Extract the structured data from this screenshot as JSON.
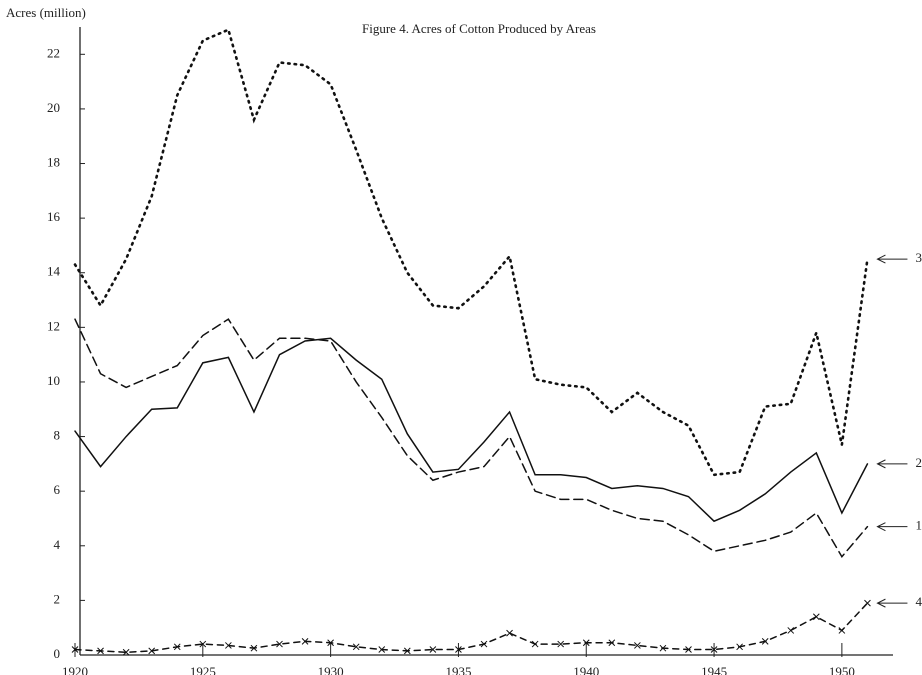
{
  "chart_data": {
    "type": "line",
    "title": "Figure 4.  Acres of Cotton Produced by Areas",
    "y_label": "Acres (million)",
    "x": [
      1920,
      1921,
      1922,
      1923,
      1924,
      1925,
      1926,
      1927,
      1928,
      1929,
      1930,
      1931,
      1932,
      1933,
      1934,
      1935,
      1936,
      1937,
      1938,
      1939,
      1940,
      1941,
      1942,
      1943,
      1944,
      1945,
      1946,
      1947,
      1948,
      1949,
      1950,
      1951
    ],
    "series": [
      {
        "name": "3",
        "color": "#111",
        "line_style": "dotted",
        "values": [
          14.3,
          12.8,
          14.5,
          16.8,
          20.5,
          22.5,
          22.9,
          19.6,
          21.7,
          21.6,
          20.9,
          18.5,
          16.0,
          14.0,
          12.8,
          12.7,
          13.5,
          14.6,
          10.1,
          9.9,
          9.8,
          8.9,
          9.6,
          8.9,
          8.4,
          6.6,
          6.7,
          9.1,
          9.2,
          11.8,
          7.7,
          14.5
        ]
      },
      {
        "name": "2",
        "color": "#111",
        "line_style": "solid",
        "values": [
          8.2,
          6.9,
          8.0,
          9.0,
          9.05,
          10.7,
          10.9,
          8.9,
          11.0,
          11.5,
          11.6,
          10.8,
          10.1,
          8.1,
          6.7,
          6.8,
          7.8,
          8.9,
          6.6,
          6.6,
          6.5,
          6.1,
          6.2,
          6.1,
          5.8,
          4.9,
          5.3,
          5.9,
          6.7,
          7.4,
          5.2,
          7.0
        ]
      },
      {
        "name": "1",
        "color": "#111",
        "line_style": "dashed",
        "values": [
          12.3,
          10.3,
          9.8,
          10.2,
          10.6,
          11.7,
          12.3,
          10.8,
          11.6,
          11.6,
          11.5,
          10.0,
          8.7,
          7.3,
          6.4,
          6.7,
          6.9,
          8.0,
          6.0,
          5.7,
          5.7,
          5.3,
          5.0,
          4.9,
          4.4,
          3.8,
          4.0,
          4.2,
          4.5,
          5.2,
          3.6,
          4.7
        ]
      },
      {
        "name": "4",
        "color": "#111",
        "line_style": "cross",
        "values": [
          0.2,
          0.15,
          0.1,
          0.15,
          0.3,
          0.4,
          0.35,
          0.25,
          0.4,
          0.5,
          0.45,
          0.3,
          0.2,
          0.15,
          0.2,
          0.2,
          0.4,
          0.8,
          0.4,
          0.4,
          0.45,
          0.45,
          0.35,
          0.25,
          0.2,
          0.2,
          0.3,
          0.5,
          0.9,
          1.4,
          0.9,
          1.9
        ]
      }
    ],
    "xlim": [
      1920,
      1952
    ],
    "xticks": [
      1920,
      1925,
      1930,
      1935,
      1940,
      1945,
      1950
    ],
    "ylim": [
      0,
      23
    ],
    "yticks": [
      0,
      2,
      4,
      6,
      8,
      10,
      12,
      14,
      16,
      18,
      20,
      22
    ]
  }
}
